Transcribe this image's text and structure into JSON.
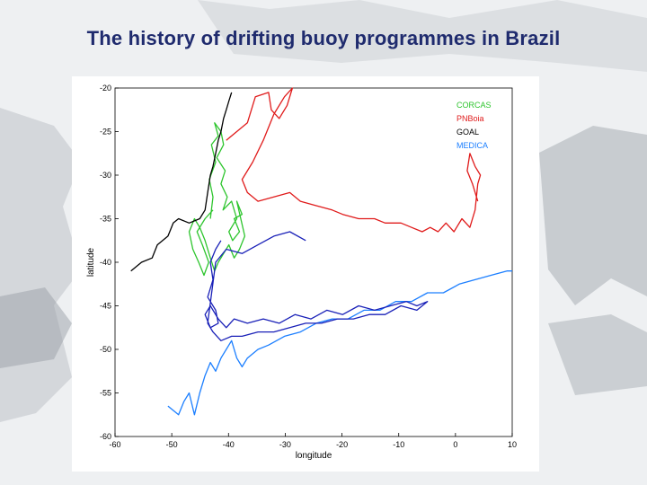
{
  "slide": {
    "title": "The history of drifting buoy programmes in Brazil"
  },
  "chart_data": {
    "type": "line",
    "xlabel": "longitude",
    "ylabel": "latitude",
    "xlim": [
      -65,
      10
    ],
    "ylim": [
      -60,
      -20
    ],
    "x_ticks": [
      "-60",
      "-50",
      "-40",
      "-30",
      "-20",
      "-10",
      "0",
      "10"
    ],
    "y_ticks": [
      "-20",
      "-25",
      "-30",
      "-35",
      "-40",
      "-45",
      "-50",
      "-55",
      "-60"
    ],
    "legend_position": "top-right",
    "series": [
      {
        "name": "CORCAS",
        "color": "#2ec52e",
        "x": [
          -47,
          -46.5,
          -47.2,
          -46,
          -46.8,
          -45.5,
          -46.2,
          -45,
          -44.5,
          -45.8,
          -44.2,
          -45,
          -43.8,
          -44.6,
          -43,
          -42,
          -43.5,
          -42.8,
          -41.5,
          -42.5,
          -41,
          -42,
          -40.5,
          -41.5,
          -42.5,
          -43.5,
          -44.5,
          -45.5,
          -46.2,
          -47,
          -48,
          -49,
          -50,
          -51,
          -50.3,
          -49.2,
          -48.2,
          -47.3,
          -48.5,
          -49.5,
          -48,
          -46.5
        ],
        "y": [
          -35,
          -32.5,
          -30.5,
          -28.5,
          -26.5,
          -25.5,
          -24,
          -25,
          -26.5,
          -28,
          -29.5,
          -31,
          -32.5,
          -34,
          -33,
          -35,
          -36.5,
          -37.5,
          -36.5,
          -35,
          -34.5,
          -33,
          -37,
          -38.5,
          -39.5,
          -38,
          -39,
          -40,
          -41,
          -39.5,
          -37.5,
          -36,
          -35,
          -36.5,
          -38.5,
          -40,
          -41.5,
          -40,
          -38,
          -36.5,
          -35,
          -34
        ]
      },
      {
        "name": "PNBoia",
        "color": "#e01b1b",
        "x": [
          -44,
          -42,
          -40,
          -38.5,
          -36,
          -35.5,
          -34,
          -32.5,
          -31.5,
          -33,
          -35,
          -37,
          -39,
          -41,
          -40,
          -38,
          -35,
          -32,
          -30,
          -27,
          -24,
          -22,
          -19,
          -16,
          -14,
          -11,
          -9,
          -7,
          -5.5,
          -4,
          -2.5,
          -1,
          0.5,
          2,
          3,
          3.5,
          4,
          3,
          2,
          1.5,
          2.5,
          3.5
        ],
        "y": [
          -26,
          -25,
          -24,
          -21,
          -20.5,
          -22.5,
          -23.5,
          -22,
          -20,
          -21,
          -23,
          -26,
          -28.5,
          -30.5,
          -32,
          -33,
          -32.5,
          -32,
          -33,
          -33.5,
          -34,
          -34.5,
          -35,
          -35,
          -35.5,
          -35.5,
          -36,
          -36.5,
          -36,
          -36.5,
          -35.5,
          -36.5,
          -35,
          -36,
          -34,
          -31,
          -30,
          -29,
          -27.5,
          -29.5,
          -31,
          -33
        ]
      },
      {
        "name": "GOAL",
        "color": "#000000",
        "x": [
          -62,
          -60,
          -58,
          -57,
          -55,
          -54,
          -53,
          -51,
          -49,
          -48,
          -47.5,
          -47,
          -46.5,
          -46,
          -45.5,
          -45,
          -44.5,
          -44,
          -43.5,
          -43
        ],
        "y": [
          -41,
          -40,
          -39.5,
          -38,
          -37,
          -35.5,
          -35,
          -35.5,
          -35,
          -34,
          -32,
          -30,
          -29,
          -27.5,
          -26,
          -25,
          -23.5,
          -22.5,
          -21.5,
          -20.5
        ]
      },
      {
        "name": "MEDICA",
        "color": "#1c7fff",
        "x": [
          -55,
          -53,
          -52,
          -51,
          -50,
          -49,
          -48,
          -47,
          -46,
          -45,
          -44,
          -43,
          -42,
          -41,
          -40,
          -38,
          -36,
          -33,
          -30,
          -27,
          -24,
          -21,
          -18,
          -15,
          -12,
          -9,
          -6,
          -3,
          0,
          3,
          6,
          9,
          10
        ],
        "y": [
          -56.5,
          -57.5,
          -56,
          -55,
          -57.5,
          -55,
          -53,
          -51.5,
          -52.5,
          -51,
          -50,
          -49,
          -51,
          -52,
          -51,
          -50,
          -49.5,
          -48.5,
          -48,
          -47,
          -46.5,
          -46.5,
          -45.5,
          -45.5,
          -44.5,
          -44.5,
          -43.5,
          -43.5,
          -42.5,
          -42,
          -41.5,
          -41,
          -41
        ]
      },
      {
        "name": "",
        "color": "#1a21b8",
        "x": [
          -45,
          -46,
          -47,
          -46.5,
          -47.5,
          -46,
          -45.5,
          -47,
          -48,
          -47,
          -45.5,
          -44,
          -42.5,
          -40,
          -37,
          -34,
          -31,
          -28,
          -25,
          -22,
          -19,
          -16,
          -13,
          -10,
          -8,
          -6,
          -8,
          -11,
          -14,
          -17,
          -20,
          -23,
          -26,
          -29,
          -32,
          -35,
          -38,
          -41,
          -43,
          -45,
          -46.5,
          -47.5,
          -46,
          -44,
          -41,
          -38,
          -35,
          -32,
          -29
        ],
        "y": [
          -37.5,
          -38.5,
          -40,
          -42,
          -44,
          -45.5,
          -47,
          -47.5,
          -46,
          -45,
          -46.5,
          -47.5,
          -46.5,
          -47,
          -46.5,
          -47,
          -46,
          -46.5,
          -45.5,
          -46,
          -45,
          -45.5,
          -45,
          -44.5,
          -45,
          -44.5,
          -45.5,
          -45,
          -46,
          -46,
          -46.5,
          -46.5,
          -47,
          -47,
          -47.5,
          -48,
          -48,
          -48.5,
          -48.5,
          -49,
          -48,
          -47,
          -40,
          -38.5,
          -39,
          -38,
          -37,
          -36.5,
          -37.5
        ]
      }
    ]
  }
}
